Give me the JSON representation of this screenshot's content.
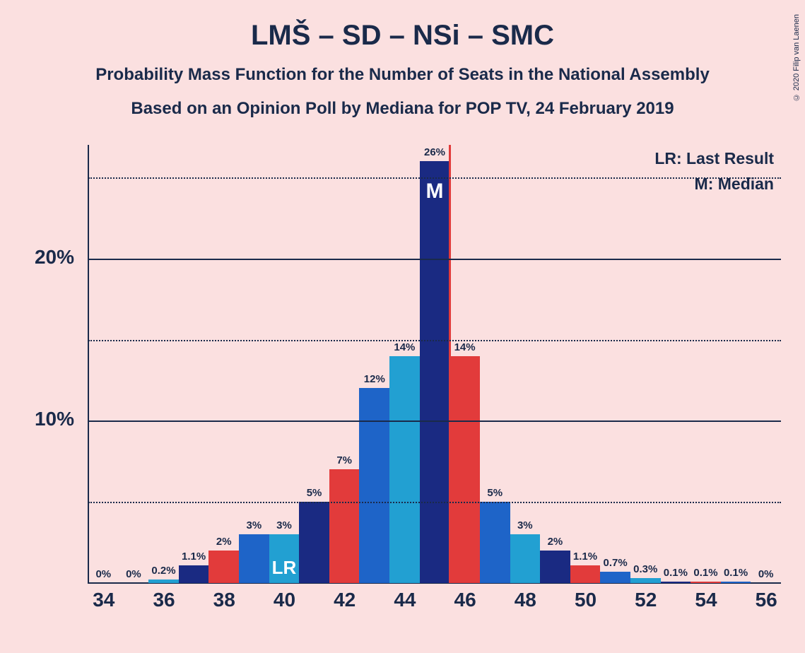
{
  "title": "LMŠ – SD – NSi – SMC",
  "title_fontsize": 40,
  "subtitle1": "Probability Mass Function for the Number of Seats in the National Assembly",
  "subtitle2": "Based on an Opinion Poll by Mediana for POP TV, 24 February 2019",
  "subtitle_fontsize": 24,
  "copyright": "© 2020 Filip van Laenen",
  "legend": {
    "lr": "LR: Last Result",
    "m": "M: Median",
    "fontsize": 23
  },
  "colors": {
    "background": "#fbe0e0",
    "text": "#1a2a4a",
    "bar_palette": [
      "#e23b3b",
      "#1e64c8",
      "#22a0d2",
      "#1a2a82"
    ],
    "median_line": "#e23b3b",
    "in_bar_text": "#ffffff"
  },
  "chart": {
    "type": "bar",
    "seats": [
      34,
      35,
      36,
      37,
      38,
      39,
      40,
      41,
      42,
      43,
      44,
      45,
      46,
      47,
      48,
      49,
      50,
      51,
      52,
      53,
      54,
      55,
      56
    ],
    "labels": [
      "0%",
      "0%",
      "0.2%",
      "1.1%",
      "2%",
      "3%",
      "3%",
      "5%",
      "7%",
      "12%",
      "14%",
      "26%",
      "14%",
      "5%",
      "3%",
      "2%",
      "1.1%",
      "0.7%",
      "0.3%",
      "0.1%",
      "0.1%",
      "0.1%",
      "0%"
    ],
    "values": [
      0,
      0,
      0.2,
      1.1,
      2,
      3,
      3,
      5,
      7,
      12,
      14,
      26,
      14,
      5,
      3,
      2,
      1.1,
      0.7,
      0.3,
      0.1,
      0.1,
      0.1,
      0
    ],
    "xticks": [
      34,
      36,
      38,
      40,
      42,
      44,
      46,
      48,
      50,
      52,
      54,
      56
    ],
    "yticks_major": [
      10,
      20
    ],
    "yticks_minor": [
      5,
      15,
      25
    ],
    "ymax": 27,
    "bar_width_ratio": 1.0,
    "bar_label_fontsize": 15,
    "xtick_fontsize": 28,
    "ytick_fontsize": 28,
    "lr_seat": 40,
    "median_seat": 45,
    "lr_label": "LR",
    "m_label": "M"
  }
}
